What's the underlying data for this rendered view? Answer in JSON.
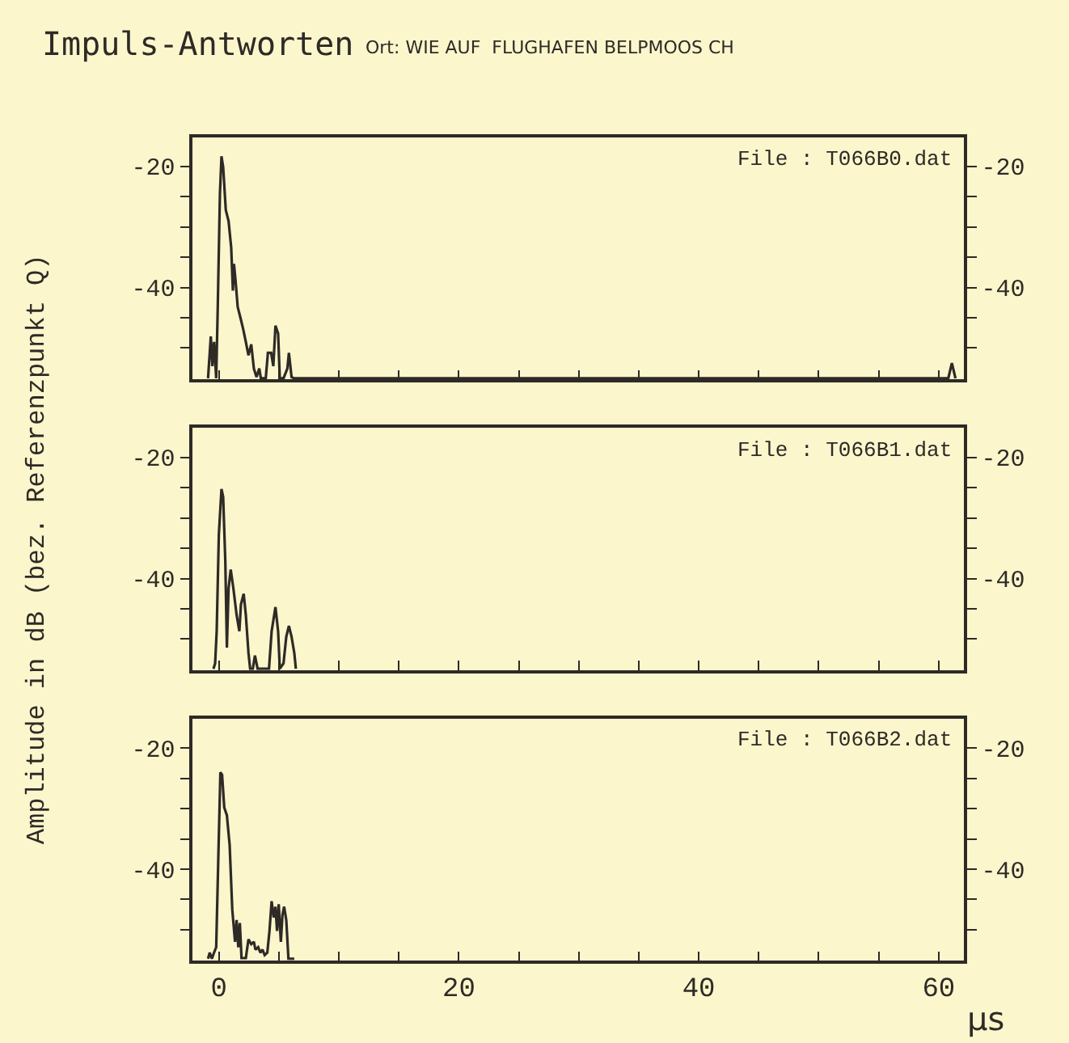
{
  "chart_data": [
    {
      "type": "line",
      "title": "Impuls-Antworten",
      "subtitle": "Ort: WIE AUF  FLUGHAFEN BELPMOOS CH",
      "annotations": [
        "File : T066B0.dat"
      ],
      "x": [
        -0.9,
        -0.67,
        -0.54,
        -0.4,
        -0.22,
        -0.09,
        0.09,
        0.22,
        0.36,
        0.58,
        0.81,
        1.03,
        1.17,
        1.26,
        1.39,
        1.57,
        1.8,
        2.02,
        2.25,
        2.47,
        2.7,
        2.92,
        3.14,
        3.37,
        3.5,
        3.91,
        4.09,
        4.36,
        4.54,
        4.72,
        4.94,
        5.08,
        5.39,
        5.71,
        5.84,
        6.06,
        6.29,
        60.8,
        61.1,
        61.4
      ],
      "series": [
        {
          "color": "#2e2a26",
          "values": [
            -55.0,
            -48.1,
            -53.0,
            -49.0,
            -55.0,
            -43.2,
            -24.5,
            -18.3,
            -20.1,
            -27.2,
            -29.0,
            -33.4,
            -40.5,
            -36.1,
            -38.8,
            -43.2,
            -45.0,
            -46.8,
            -49.0,
            -51.2,
            -49.4,
            -53.4,
            -54.8,
            -53.4,
            -55.0,
            -55.0,
            -50.8,
            -50.8,
            -53.0,
            -46.3,
            -47.6,
            -55.0,
            -55.0,
            -53.4,
            -50.8,
            -54.8,
            -55.0,
            -55.0,
            -52.5,
            -55.0
          ]
        }
      ],
      "xlim": [
        -2.2,
        62.1
      ],
      "ylim": [
        -55.2,
        -15.2
      ],
      "y2lim": [
        -55.2,
        -15.2
      ],
      "xticks": [
        0,
        {
          "value": 5,
          "label": null
        },
        {
          "value": 10,
          "label": null
        },
        {
          "value": 15,
          "label": null
        },
        20,
        {
          "value": 25,
          "label": null
        },
        {
          "value": 30,
          "label": null
        },
        {
          "value": 35,
          "label": null
        },
        40,
        {
          "value": 45,
          "label": null
        },
        {
          "value": 50,
          "label": null
        },
        {
          "value": 55,
          "label": null
        },
        60
      ],
      "yticks": [
        -20,
        {
          "value": -25,
          "label": null
        },
        {
          "value": -30,
          "label": null
        },
        {
          "value": -35,
          "label": null
        },
        -40,
        {
          "value": -45,
          "label": null
        },
        {
          "value": -50,
          "label": null
        }
      ],
      "y2ticks": [
        -20,
        {
          "value": -25,
          "label": null
        },
        {
          "value": -30,
          "label": null
        },
        {
          "value": -35,
          "label": null
        },
        -40,
        {
          "value": -45,
          "label": null
        },
        {
          "value": -50,
          "label": null
        }
      ],
      "tick_labels": "y",
      "grid": false
    },
    {
      "type": "line",
      "ylabel": "Amplitude in dB (bez. Referenzpunkt Q)",
      "annotations": [
        "File : T066B1.dat"
      ],
      "x": [
        -0.45,
        -0.31,
        -0.18,
        0,
        0.22,
        0.36,
        0.54,
        0.67,
        0.81,
        0.99,
        1.21,
        1.48,
        1.71,
        1.84,
        2.07,
        2.25,
        2.47,
        2.61,
        2.83,
        3.01,
        3.23,
        4.18,
        4.4,
        4.72,
        4.94,
        5.08,
        5.39,
        5.62,
        5.84,
        6.06,
        6.29,
        6.42
      ],
      "series": [
        {
          "color": "#2e2a26",
          "values": [
            -54.9,
            -54.0,
            -48.7,
            -32.7,
            -25.2,
            -26.5,
            -37.2,
            -51.4,
            -41.6,
            -38.5,
            -41.6,
            -46.0,
            -48.7,
            -44.3,
            -42.5,
            -46.0,
            -52.3,
            -54.9,
            -54.9,
            -52.7,
            -54.9,
            -54.9,
            -48.7,
            -44.7,
            -48.7,
            -54.9,
            -54.0,
            -49.6,
            -47.8,
            -49.6,
            -52.3,
            -54.9
          ]
        }
      ],
      "xlim": [
        -2.2,
        62.1
      ],
      "ylim": [
        -55.1,
        -15.1
      ],
      "y2lim": [
        -55.1,
        -15.1
      ],
      "xticks": [
        0,
        {
          "value": 5,
          "label": null
        },
        {
          "value": 10,
          "label": null
        },
        {
          "value": 15,
          "label": null
        },
        20,
        {
          "value": 25,
          "label": null
        },
        {
          "value": 30,
          "label": null
        },
        {
          "value": 35,
          "label": null
        },
        40,
        {
          "value": 45,
          "label": null
        },
        {
          "value": 50,
          "label": null
        },
        {
          "value": 55,
          "label": null
        },
        60
      ],
      "yticks": [
        -20,
        {
          "value": -25,
          "label": null
        },
        {
          "value": -30,
          "label": null
        },
        {
          "value": -35,
          "label": null
        },
        -40,
        {
          "value": -45,
          "label": null
        },
        {
          "value": -50,
          "label": null
        }
      ],
      "y2ticks": [
        -20,
        {
          "value": -25,
          "label": null
        },
        {
          "value": -30,
          "label": null
        },
        {
          "value": -35,
          "label": null
        },
        -40,
        {
          "value": -45,
          "label": null
        },
        {
          "value": -50,
          "label": null
        }
      ],
      "tick_labels": "y",
      "grid": false
    },
    {
      "type": "line",
      "xlabel": "µs",
      "annotations": [
        "File : T066B2.dat"
      ],
      "x": [
        -0.9,
        -0.76,
        -0.58,
        -0.4,
        -0.22,
        -0.04,
        0.13,
        0.27,
        0.45,
        0.67,
        0.9,
        1.12,
        1.35,
        1.48,
        1.62,
        1.75,
        1.89,
        2.25,
        2.47,
        2.7,
        2.92,
        3.05,
        3.28,
        3.46,
        3.64,
        3.82,
        4.04,
        4.22,
        4.4,
        4.58,
        4.72,
        4.85,
        4.99,
        5.17,
        5.3,
        5.44,
        5.62,
        5.8,
        6.29
      ],
      "series": [
        {
          "color": "#2e2a26",
          "values": [
            -54.8,
            -53.8,
            -54.8,
            -53.8,
            -52.9,
            -37.8,
            -24.0,
            -24.4,
            -29.8,
            -31.1,
            -36.0,
            -46.7,
            -52.0,
            -48.4,
            -52.9,
            -48.9,
            -54.7,
            -54.7,
            -51.6,
            -52.4,
            -52.0,
            -53.3,
            -52.9,
            -53.8,
            -53.3,
            -54.2,
            -53.8,
            -50.2,
            -45.3,
            -48.0,
            -46.2,
            -50.2,
            -45.8,
            -52.0,
            -47.6,
            -46.2,
            -48.4,
            -54.8,
            -54.8
          ]
        }
      ],
      "xlim": [
        -2.2,
        62.1
      ],
      "ylim": [
        -55.1,
        -15.1
      ],
      "y2lim": [
        -55.1,
        -15.1
      ],
      "xticks": [
        0,
        {
          "value": 5,
          "label": null
        },
        {
          "value": 10,
          "label": null
        },
        {
          "value": 15,
          "label": null
        },
        20,
        {
          "value": 25,
          "label": null
        },
        {
          "value": 30,
          "label": null
        },
        {
          "value": 35,
          "label": null
        },
        40,
        {
          "value": 45,
          "label": null
        },
        {
          "value": 50,
          "label": null
        },
        {
          "value": 55,
          "label": null
        },
        60
      ],
      "yticks": [
        -20,
        {
          "value": -25,
          "label": null
        },
        {
          "value": -30,
          "label": null
        },
        {
          "value": -35,
          "label": null
        },
        -40,
        {
          "value": -45,
          "label": null
        },
        {
          "value": -50,
          "label": null
        }
      ],
      "y2ticks": [
        -20,
        {
          "value": -25,
          "label": null
        },
        {
          "value": -30,
          "label": null
        },
        {
          "value": -35,
          "label": null
        },
        -40,
        {
          "value": -45,
          "label": null
        },
        {
          "value": -50,
          "label": null
        }
      ],
      "grid": false
    }
  ]
}
